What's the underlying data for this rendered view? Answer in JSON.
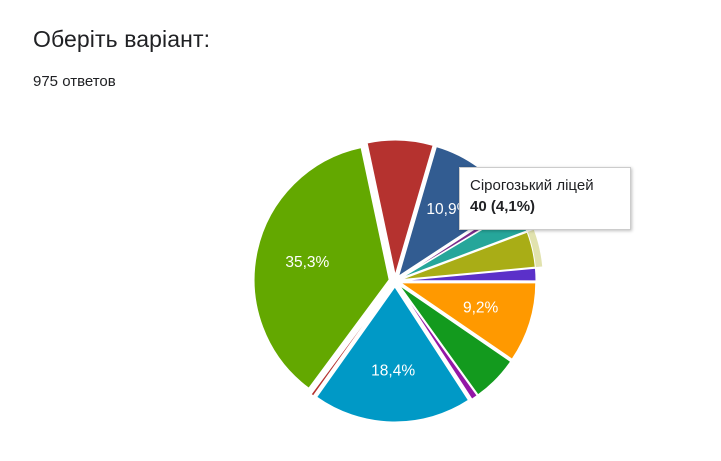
{
  "question": {
    "title": "Оберіть варіант:",
    "responses": "975 ответов"
  },
  "tooltip": {
    "name": "Сірогозький ліцей",
    "value": "40 (4,1%)"
  },
  "chart_data": {
    "type": "pie",
    "total": 975,
    "slices": [
      {
        "value": 74,
        "percent_label": "",
        "color": "#b5322f"
      },
      {
        "value": 106,
        "percent_label": "10,9%",
        "color": "#325c91"
      },
      {
        "value": 6,
        "percent_label": "",
        "color": "#7a2b8c"
      },
      {
        "value": 27,
        "percent_label": "",
        "color": "#26a69a"
      },
      {
        "value": 40,
        "percent_label": "",
        "color": "#a9ad16",
        "highlight": true
      },
      {
        "value": 14,
        "percent_label": "",
        "color": "#5b30c9"
      },
      {
        "value": 90,
        "percent_label": "9,2%",
        "color": "#ff9900"
      },
      {
        "value": 52,
        "percent_label": "",
        "color": "#139a1e"
      },
      {
        "value": 7,
        "percent_label": "",
        "color": "#9317a6"
      },
      {
        "value": 179,
        "percent_label": "18,4%",
        "color": "#0099c6"
      },
      {
        "value": 3,
        "percent_label": "",
        "color": "#b5322f"
      },
      {
        "value": 344,
        "percent_label": "35,3%",
        "color": "#63a800"
      }
    ],
    "legend": "none"
  }
}
